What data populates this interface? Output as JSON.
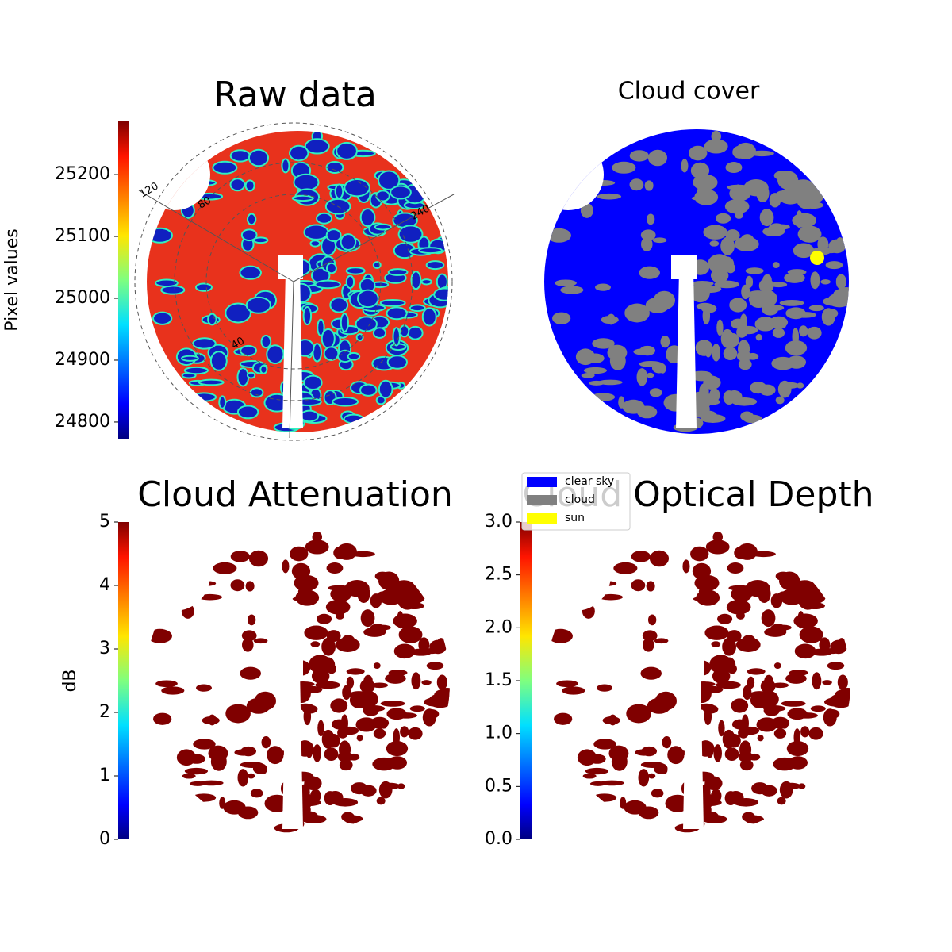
{
  "panels": [
    {
      "title": "Raw data",
      "colorbar": {
        "label": "Pixel values",
        "lim": [
          24773,
          25286
        ],
        "ticks": [
          24800,
          24900,
          25000,
          25100,
          25200
        ]
      },
      "annotations": [
        "120",
        "80",
        "40",
        "240"
      ]
    },
    {
      "title": "Cloud cover",
      "legend": [
        {
          "label": "clear sky",
          "color": "#0000ff"
        },
        {
          "label": "cloud",
          "color": "#808080"
        },
        {
          "label": "sun",
          "color": "#ffff00"
        }
      ]
    },
    {
      "title": "Cloud Attenuation",
      "colorbar": {
        "label": "dB",
        "lim": [
          0,
          5
        ],
        "ticks": [
          0,
          1,
          2,
          3,
          4,
          5
        ]
      }
    },
    {
      "title": "Cloud Optical Depth",
      "colorbar": {
        "lim": [
          0,
          3
        ],
        "ticks": [
          {
            "value": 0,
            "label": "0.0"
          },
          0.5,
          {
            "value": 1,
            "label": "1.0"
          },
          1.5,
          {
            "value": 2,
            "label": "2.0"
          },
          2.5,
          {
            "value": 3,
            "label": "3.0"
          }
        ]
      }
    }
  ]
}
